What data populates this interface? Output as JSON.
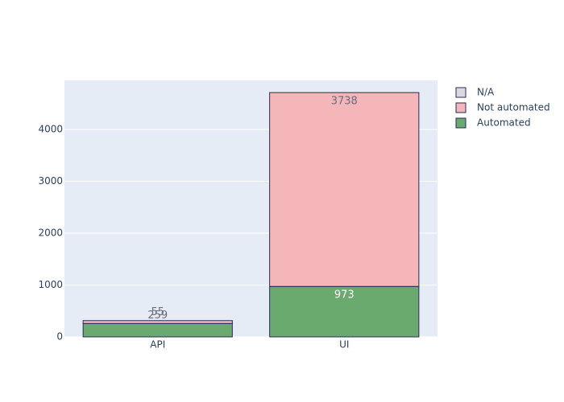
{
  "chart_data": {
    "type": "bar",
    "stacked": true,
    "categories": [
      "API",
      "UI"
    ],
    "series": [
      {
        "name": "Automated",
        "color": "#6aaa6f",
        "values": [
          259,
          973
        ]
      },
      {
        "name": "Not automated",
        "color": "#f4b6b9",
        "values": [
          55,
          3738
        ]
      },
      {
        "name": "N/A",
        "color": "#d9d9e0",
        "values": [
          0,
          0
        ]
      }
    ],
    "ylim": [
      0,
      4946
    ],
    "yticks": [
      0,
      1000,
      2000,
      3000,
      4000
    ],
    "grid": true,
    "legend": "right"
  }
}
